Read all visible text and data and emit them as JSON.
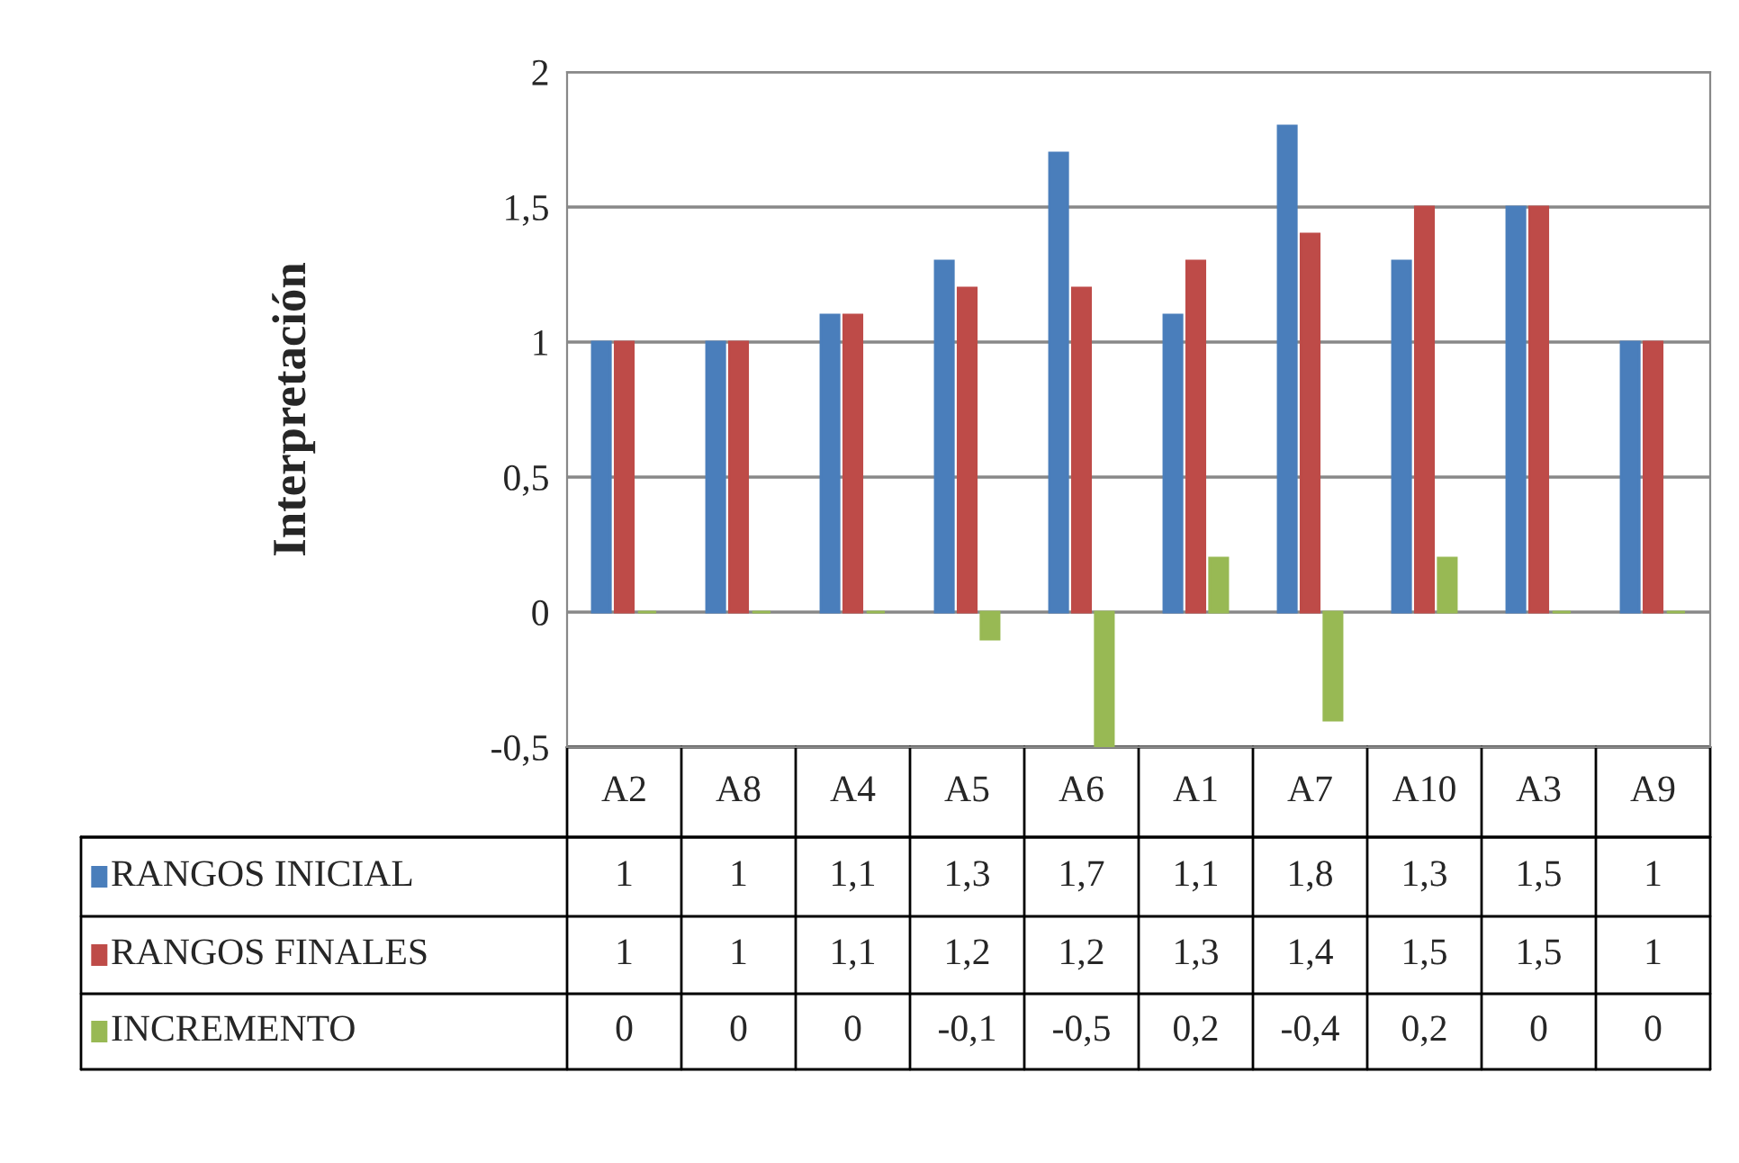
{
  "chart_data": {
    "type": "bar",
    "ylabel": "Interpretación",
    "categories": [
      "A2",
      "A8",
      "A4",
      "A5",
      "A6",
      "A1",
      "A7",
      "A10",
      "A3",
      "A9"
    ],
    "series": [
      {
        "name": "RANGOS INICIAL",
        "color": "#4a7ebb",
        "values": [
          1,
          1,
          1.1,
          1.3,
          1.7,
          1.1,
          1.8,
          1.3,
          1.5,
          1
        ],
        "value_labels": [
          "1",
          "1",
          "1,1",
          "1,3",
          "1,7",
          "1,1",
          "1,8",
          "1,3",
          "1,5",
          "1"
        ]
      },
      {
        "name": "RANGOS FINALES",
        "color": "#be4b48",
        "values": [
          1,
          1,
          1.1,
          1.2,
          1.2,
          1.3,
          1.4,
          1.5,
          1.5,
          1
        ],
        "value_labels": [
          "1",
          "1",
          "1,1",
          "1,2",
          "1,2",
          "1,3",
          "1,4",
          "1,5",
          "1,5",
          "1"
        ]
      },
      {
        "name": "INCREMENTO",
        "color": "#98b954",
        "values": [
          0,
          0,
          0,
          -0.1,
          -0.5,
          0.2,
          -0.4,
          0.2,
          0,
          0
        ],
        "value_labels": [
          "0",
          "0",
          "0",
          "-0,1",
          "-0,5",
          "0,2",
          "-0,4",
          "0,2",
          "0",
          "0"
        ]
      }
    ],
    "ylim": [
      -0.5,
      2
    ],
    "yticks": [
      {
        "value": -0.5,
        "label": "-0,5"
      },
      0,
      {
        "value": 0.5,
        "label": "0,5"
      },
      1,
      {
        "value": 1.5,
        "label": "1,5"
      },
      2
    ],
    "grid": "y",
    "legend": "bottom"
  }
}
